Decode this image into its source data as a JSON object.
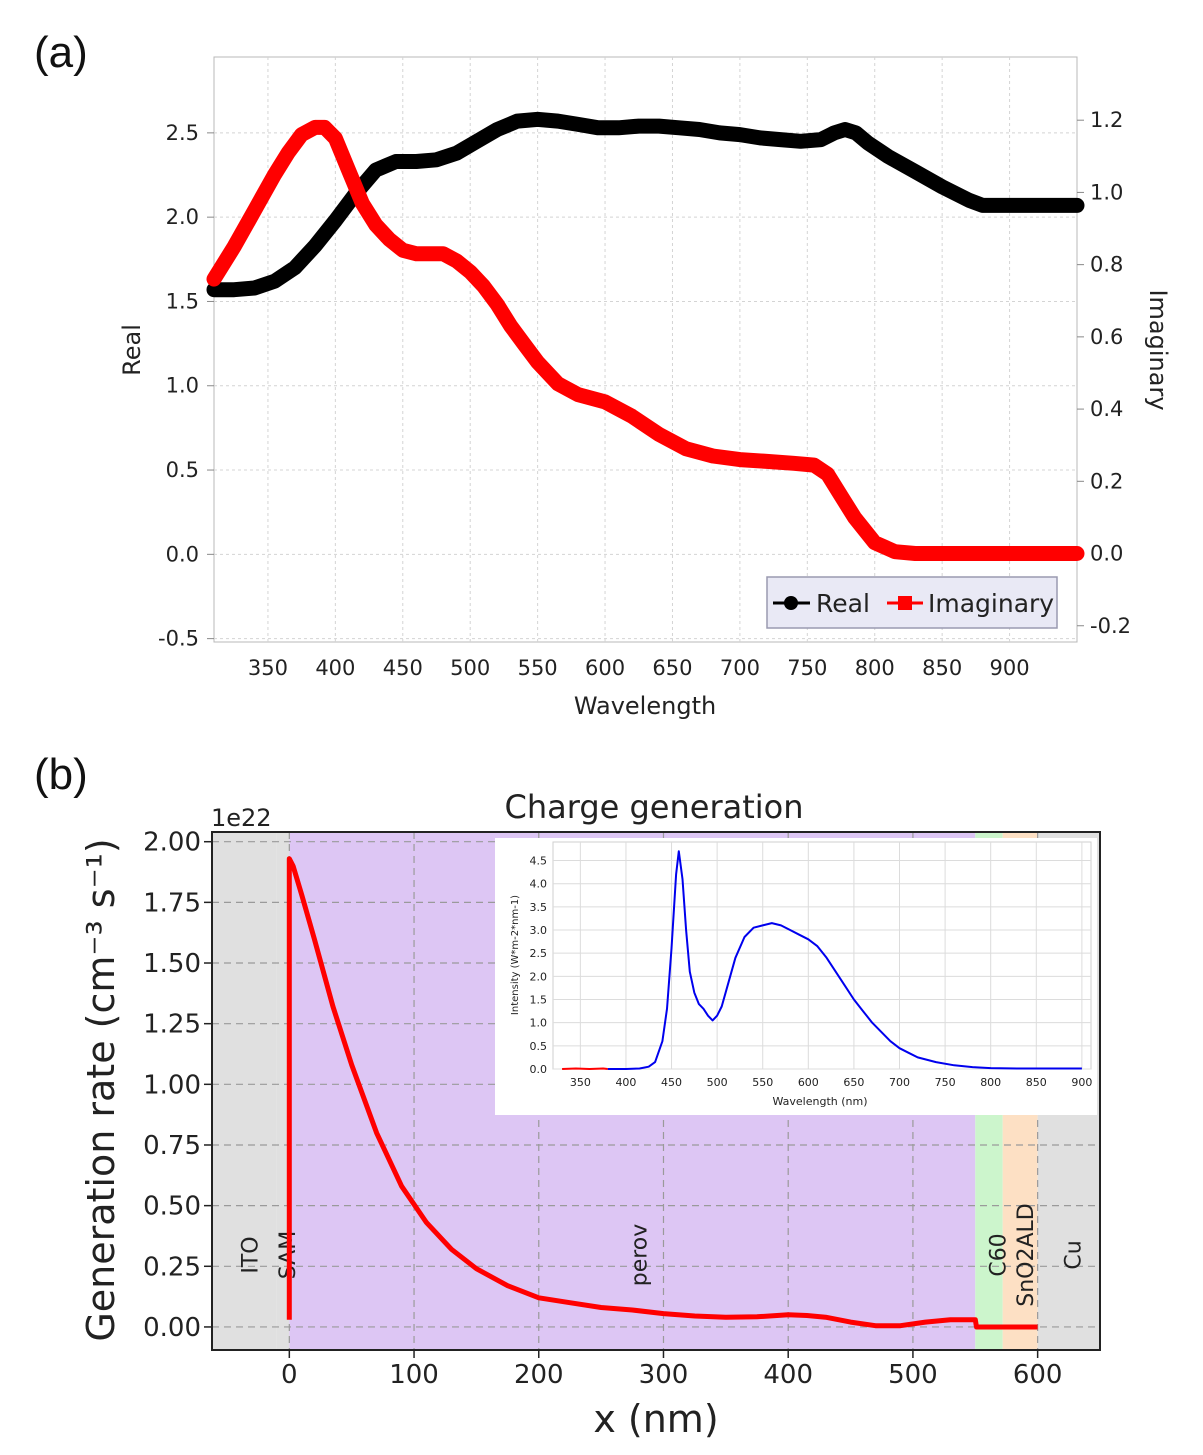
{
  "figure": {
    "panel_a_label": "(a)",
    "panel_b_label": "(b)"
  },
  "colors": {
    "real": "#000000",
    "imaginary": "#ff0000",
    "generation": "#ff0000",
    "inset_line": "#0000ee",
    "layer_grey": "#e0e0e0",
    "perovskite": "#ddc6f4",
    "c60": "#ccf5cc",
    "sno2": "#fde0c4"
  },
  "chart_data": [
    {
      "type": "line",
      "id": "refractive_index",
      "title": "",
      "xlabel": "Wavelength",
      "ylabel": "Real",
      "y2label": "Imaginary",
      "xlim": [
        310,
        950
      ],
      "ylim": [
        -0.52,
        2.95
      ],
      "y2lim": [
        -0.245,
        1.375
      ],
      "xticks": [
        350,
        400,
        450,
        500,
        550,
        600,
        650,
        700,
        750,
        800,
        850,
        900
      ],
      "xtick_labels": [
        "350",
        "400",
        "450",
        "500",
        "550",
        "600",
        "650",
        "700",
        "750",
        "800",
        "850",
        "900"
      ],
      "yticks": [
        -0.5,
        0.0,
        0.5,
        1.0,
        1.5,
        2.0,
        2.5
      ],
      "ytick_labels": [
        "-0.5",
        "0.0",
        "0.5",
        "1.0",
        "1.5",
        "2.0",
        "2.5"
      ],
      "y2ticks": [
        -0.2,
        0.0,
        0.2,
        0.4,
        0.6,
        0.8,
        1.0,
        1.2
      ],
      "y2tick_labels": [
        "-0.2",
        "0.0",
        "0.2",
        "0.4",
        "0.6",
        "0.8",
        "1.0",
        "1.2"
      ],
      "grid": true,
      "legend": {
        "position": "bottom-right",
        "entries": [
          "Real",
          "Imaginary"
        ]
      },
      "series": [
        {
          "name": "Real",
          "axis": "left",
          "color": "#000000",
          "marker": "circle",
          "x": [
            310,
            325,
            340,
            355,
            370,
            385,
            400,
            415,
            430,
            445,
            460,
            475,
            490,
            505,
            520,
            535,
            550,
            565,
            580,
            595,
            610,
            625,
            640,
            655,
            670,
            685,
            700,
            715,
            730,
            745,
            760,
            770,
            778,
            786,
            795,
            810,
            830,
            850,
            870,
            880,
            900,
            950
          ],
          "y": [
            1.57,
            1.57,
            1.58,
            1.62,
            1.7,
            1.83,
            1.98,
            2.14,
            2.28,
            2.33,
            2.33,
            2.34,
            2.38,
            2.45,
            2.52,
            2.57,
            2.58,
            2.57,
            2.55,
            2.53,
            2.53,
            2.54,
            2.54,
            2.53,
            2.52,
            2.5,
            2.49,
            2.47,
            2.46,
            2.45,
            2.46,
            2.5,
            2.52,
            2.5,
            2.44,
            2.36,
            2.27,
            2.18,
            2.1,
            2.07,
            2.07,
            2.07
          ]
        },
        {
          "name": "Imaginary",
          "axis": "right",
          "color": "#ff0000",
          "marker": "square",
          "x": [
            310,
            325,
            340,
            355,
            365,
            375,
            385,
            392,
            400,
            410,
            420,
            430,
            440,
            450,
            460,
            470,
            480,
            490,
            500,
            510,
            520,
            530,
            540,
            550,
            565,
            580,
            600,
            620,
            640,
            660,
            680,
            700,
            720,
            740,
            755,
            765,
            775,
            785,
            800,
            815,
            830,
            880,
            950
          ],
          "y": [
            0.76,
            0.85,
            0.95,
            1.05,
            1.11,
            1.16,
            1.18,
            1.18,
            1.15,
            1.06,
            0.97,
            0.91,
            0.87,
            0.84,
            0.83,
            0.83,
            0.83,
            0.81,
            0.78,
            0.74,
            0.69,
            0.63,
            0.58,
            0.53,
            0.47,
            0.44,
            0.42,
            0.38,
            0.33,
            0.29,
            0.27,
            0.26,
            0.255,
            0.25,
            0.245,
            0.22,
            0.16,
            0.1,
            0.03,
            0.005,
            0.0,
            0.0,
            0.0
          ]
        }
      ]
    },
    {
      "type": "line",
      "id": "charge_generation",
      "title": "Charge generation",
      "xlabel": "x (nm)",
      "ylabel": "Generation rate (cm⁻³ s⁻¹)",
      "y_multiplier": "1e22",
      "xlim": [
        -62,
        650
      ],
      "ylim": [
        -0.095,
        2.04
      ],
      "xticks": [
        0,
        100,
        200,
        300,
        400,
        500,
        600
      ],
      "xtick_labels": [
        "0",
        "100",
        "200",
        "300",
        "400",
        "500",
        "600"
      ],
      "yticks": [
        0.0,
        0.25,
        0.5,
        0.75,
        1.0,
        1.25,
        1.5,
        1.75,
        2.0
      ],
      "ytick_labels": [
        "0.00",
        "0.25",
        "0.50",
        "0.75",
        "1.00",
        "1.25",
        "1.50",
        "1.75",
        "2.00"
      ],
      "grid": true,
      "layers": [
        {
          "name": "ITO",
          "start": -62,
          "end": -10,
          "color": "#e0e0e0"
        },
        {
          "name": "SAM",
          "start": -10,
          "end": 0,
          "color": "#e0e0e0"
        },
        {
          "name": "perov",
          "start": 0,
          "end": 550,
          "color": "#ddc6f4"
        },
        {
          "name": "C60",
          "start": 550,
          "end": 572,
          "color": "#ccf5cc"
        },
        {
          "name": "SnO2ALD",
          "start": 572,
          "end": 600,
          "color": "#fde0c4"
        },
        {
          "name": "Cu",
          "start": 600,
          "end": 650,
          "color": "#e0e0e0"
        }
      ],
      "layer_label_x": [
        -32,
        -2,
        280,
        568,
        590,
        628
      ],
      "series": [
        {
          "name": "Generation rate",
          "color": "#ff0000",
          "x": [
            0,
            0,
            3,
            10,
            20,
            35,
            50,
            70,
            90,
            110,
            130,
            150,
            175,
            200,
            225,
            250,
            275,
            300,
            325,
            350,
            375,
            400,
            415,
            430,
            450,
            470,
            490,
            510,
            530,
            545,
            550,
            551,
            560,
            600
          ],
          "y": [
            0.03,
            1.93,
            1.9,
            1.78,
            1.6,
            1.32,
            1.08,
            0.8,
            0.58,
            0.43,
            0.32,
            0.24,
            0.17,
            0.12,
            0.1,
            0.08,
            0.07,
            0.055,
            0.045,
            0.04,
            0.042,
            0.05,
            0.047,
            0.04,
            0.02,
            0.005,
            0.005,
            0.02,
            0.03,
            0.03,
            0.03,
            0.0,
            0.0,
            0.0
          ]
        }
      ]
    },
    {
      "type": "line",
      "id": "inset_spectrum",
      "title": "",
      "xlabel": "Wavelength (nm)",
      "ylabel": "Intensity (W*m-2*nm-1)",
      "xlim": [
        320,
        910
      ],
      "ylim": [
        0,
        4.9
      ],
      "xticks": [
        350,
        400,
        450,
        500,
        550,
        600,
        650,
        700,
        750,
        800,
        850,
        900
      ],
      "xtick_labels": [
        "350",
        "400",
        "450",
        "500",
        "550",
        "600",
        "650",
        "700",
        "750",
        "800",
        "850",
        "900"
      ],
      "yticks": [
        0.0,
        0.5,
        1.0,
        1.5,
        2.0,
        2.5,
        3.0,
        3.5,
        4.0,
        4.5
      ],
      "ytick_labels": [
        "0.0",
        "0.5",
        "1.0",
        "1.5",
        "2.0",
        "2.5",
        "3.0",
        "3.5",
        "4.0",
        "4.5"
      ],
      "grid": true,
      "series": [
        {
          "name": "Spectrum",
          "color": "#0000ee",
          "x": [
            380,
            400,
            415,
            425,
            432,
            440,
            445,
            450,
            455,
            458,
            462,
            466,
            470,
            475,
            480,
            485,
            490,
            495,
            500,
            505,
            510,
            520,
            530,
            540,
            550,
            560,
            570,
            580,
            590,
            600,
            610,
            620,
            630,
            640,
            650,
            660,
            670,
            680,
            690,
            700,
            710,
            720,
            740,
            760,
            780,
            800,
            830,
            860,
            900
          ],
          "y": [
            0.0,
            0.0,
            0.01,
            0.05,
            0.15,
            0.6,
            1.3,
            2.6,
            4.2,
            4.7,
            4.1,
            3.0,
            2.1,
            1.65,
            1.4,
            1.3,
            1.15,
            1.05,
            1.15,
            1.35,
            1.7,
            2.4,
            2.85,
            3.05,
            3.1,
            3.15,
            3.1,
            3.0,
            2.9,
            2.8,
            2.65,
            2.4,
            2.1,
            1.8,
            1.5,
            1.25,
            1.0,
            0.8,
            0.6,
            0.45,
            0.35,
            0.25,
            0.15,
            0.08,
            0.04,
            0.02,
            0.01,
            0.01,
            0.01
          ]
        },
        {
          "name": "Spectrum low",
          "color": "#ff0000",
          "x": [
            330,
            345,
            360,
            375,
            380
          ],
          "y": [
            0.0,
            0.01,
            0.0,
            0.01,
            0.0
          ]
        }
      ]
    }
  ]
}
